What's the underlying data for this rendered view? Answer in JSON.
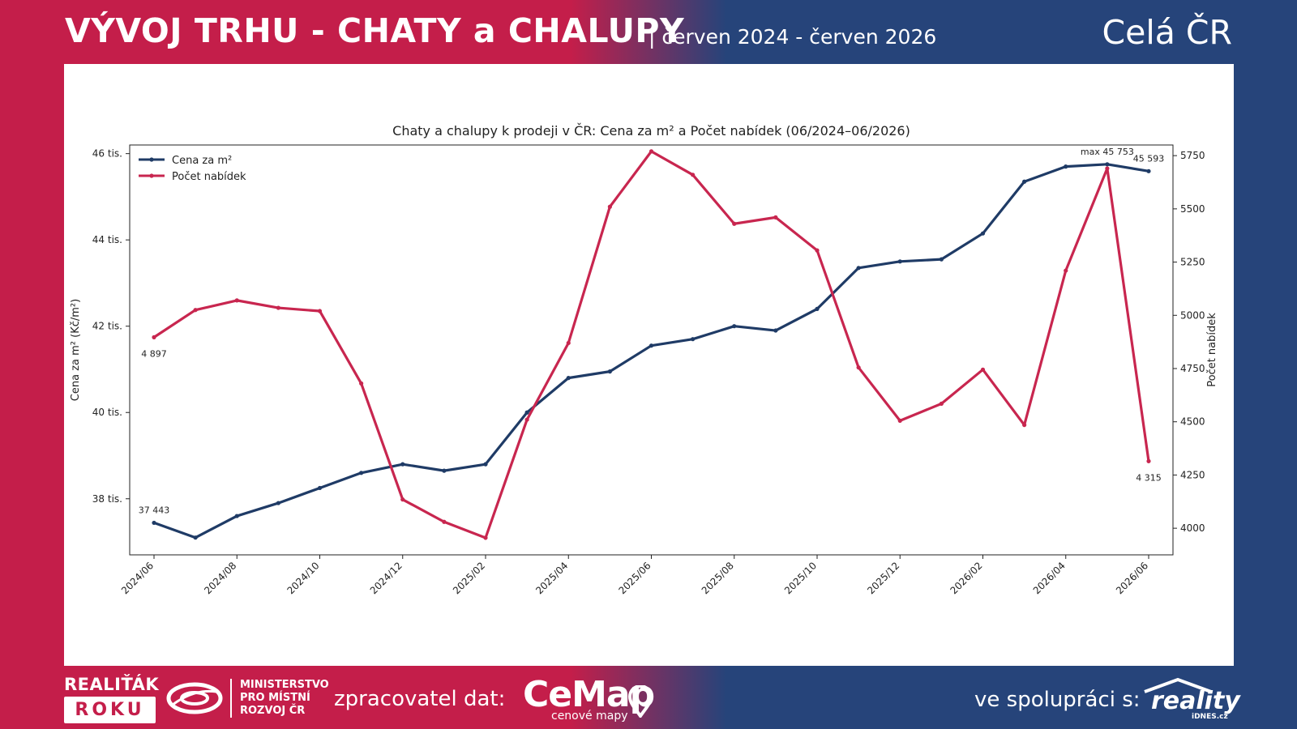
{
  "header": {
    "title": "VÝVOJ TRHU - CHATY a CHALUPY",
    "subtitle": "| červen 2024 - červen 2026",
    "region": "Celá ČR"
  },
  "footer": {
    "award_line1": "REALIŤÁK",
    "award_line2": "ROKU",
    "ministry": [
      "MINISTERSTVO",
      "PRO MÍSTNÍ",
      "ROZVOJ ČR"
    ],
    "processor_label": "zpracovatel dat:",
    "processor_name": "CeMap",
    "processor_sub": "cenové mapy",
    "partner_label": "ve spolupráci s:",
    "partner_name": "reality",
    "partner_sub": "iDNES.cz"
  },
  "colors": {
    "red": "#c41e4a",
    "navy": "#26447a",
    "price_line": "#1f3b66",
    "listings_line": "#c8264f"
  },
  "chart_data": {
    "type": "line",
    "title": "Chaty a chalupy k prodeji v ČR: Cena za m² a Počet nabídek (06/2024–06/2026)",
    "ylabel_left": "Cena za m² (Kč/m²)",
    "ylabel_right": "Počet nabídek",
    "x": [
      "2024/06",
      "2024/07",
      "2024/08",
      "2024/09",
      "2024/10",
      "2024/11",
      "2024/12",
      "2025/01",
      "2025/02",
      "2025/03",
      "2025/04",
      "2025/05",
      "2025/06",
      "2025/07",
      "2025/08",
      "2025/09",
      "2025/10",
      "2025/11",
      "2025/12",
      "2026/01",
      "2026/02",
      "2026/03",
      "2026/04",
      "2026/05",
      "2026/06"
    ],
    "xtick_labels": [
      "2024/06",
      "2024/08",
      "2024/10",
      "2024/12",
      "2025/02",
      "2025/04",
      "2025/06",
      "2025/08",
      "2025/10",
      "2025/12",
      "2026/02",
      "2026/04",
      "2026/06"
    ],
    "ylim_left": [
      36700,
      46200
    ],
    "yticks_left": [
      {
        "v": 38000,
        "label": "38 tis."
      },
      {
        "v": 40000,
        "label": "40 tis."
      },
      {
        "v": 42000,
        "label": "42 tis."
      },
      {
        "v": 44000,
        "label": "44 tis."
      },
      {
        "v": 46000,
        "label": "46 tis."
      }
    ],
    "ylim_right": [
      3875,
      5800
    ],
    "yticks_right": [
      4000,
      4250,
      4500,
      4750,
      5000,
      5250,
      5500,
      5750
    ],
    "legend_position": "top-left",
    "grid": false,
    "series": [
      {
        "name": "Cena za m²",
        "axis": "left",
        "values": [
          37443,
          37100,
          37600,
          37900,
          38250,
          38600,
          38800,
          38650,
          38800,
          40000,
          40800,
          40950,
          41550,
          41700,
          42000,
          41900,
          42400,
          43350,
          43500,
          43550,
          44150,
          45350,
          45700,
          45753,
          45593
        ]
      },
      {
        "name": "Počet nabídek",
        "axis": "right",
        "values": [
          4897,
          5025,
          5070,
          5035,
          5020,
          4680,
          4135,
          4030,
          3955,
          4510,
          4870,
          5510,
          5770,
          5660,
          5430,
          5460,
          5305,
          4755,
          4505,
          4585,
          4745,
          4485,
          5210,
          5690,
          4315
        ]
      }
    ],
    "annotations": [
      {
        "series": 0,
        "index": 0,
        "text": "37 443",
        "pos": "above"
      },
      {
        "series": 0,
        "index": 23,
        "text": "max 45 753",
        "pos": "above"
      },
      {
        "series": 0,
        "index": 24,
        "text": "45 593",
        "pos": "above"
      },
      {
        "series": 1,
        "index": 0,
        "text": "4 897",
        "pos": "below"
      },
      {
        "series": 1,
        "index": 24,
        "text": "4 315",
        "pos": "below"
      }
    ]
  }
}
